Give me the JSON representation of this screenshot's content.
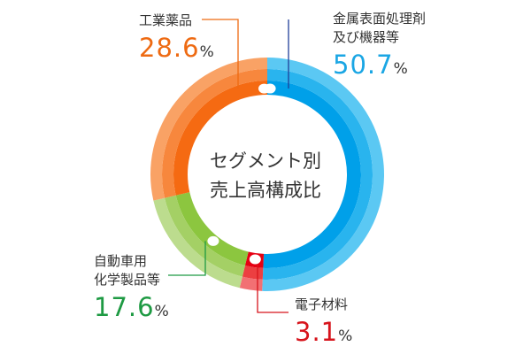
{
  "chart_data": {
    "type": "pie",
    "subtype": "donut",
    "title": "セグメント別売上高構成比",
    "title_lines": [
      "セグメント別",
      "売上高構成比"
    ],
    "slices": [
      {
        "key": "metal",
        "label": "金属表面処理剤及び機器等",
        "label_lines": [
          "金属表面処理剤",
          "及び機器等"
        ],
        "value": 50.7,
        "display": "50.7",
        "unit": "%",
        "colors": {
          "inner": "#00a0e9",
          "mid": "#29b4ee",
          "outer": "#5bc8f3"
        },
        "value_color": "#1aa6e4"
      },
      {
        "key": "electronic",
        "label": "電子材料",
        "label_lines": [
          "電子材料"
        ],
        "value": 3.1,
        "display": "3.1",
        "unit": "%",
        "colors": {
          "inner": "#e60012",
          "mid": "#ec3f41",
          "outer": "#f27073"
        },
        "value_color": "#d7141c"
      },
      {
        "key": "automotive",
        "label": "自動車用化学製品等",
        "label_lines": [
          "自動車用",
          "化学製品等"
        ],
        "value": 17.6,
        "display": "17.6",
        "unit": "%",
        "colors": {
          "inner": "#8cc63f",
          "mid": "#a4d065",
          "outer": "#bcdc8e"
        },
        "value_color": "#1e9a43"
      },
      {
        "key": "industrial",
        "label": "工業薬品",
        "label_lines": [
          "工業薬品"
        ],
        "value": 28.6,
        "display": "28.6",
        "unit": "%",
        "colors": {
          "inner": "#f56a12",
          "mid": "#f7873d",
          "outer": "#f9a265"
        },
        "value_color": "#ee6a12"
      }
    ],
    "legend": "none"
  }
}
